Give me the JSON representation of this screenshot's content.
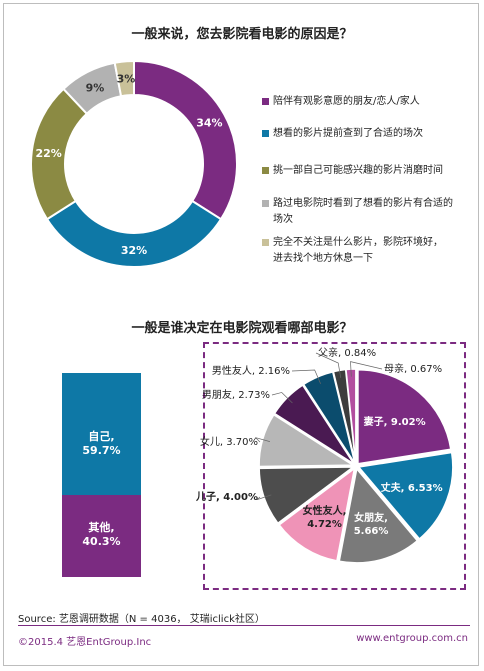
{
  "chart_data": [
    {
      "type": "pie",
      "title": "一般来说，您去影院看电影的原因是？",
      "slices": [
        {
          "label": "陪伴有观影意愿的朋友/恋人/家人",
          "value": 34,
          "value_label": "34%",
          "color": "#7b2b81"
        },
        {
          "label": "想看的影片提前查到了合适的场次",
          "value": 32,
          "value_label": "32%",
          "color": "#0e78a6"
        },
        {
          "label": "挑一部自己可能感兴趣的影片消磨时间",
          "value": 22,
          "value_label": "22%",
          "color": "#8b8a43"
        },
        {
          "label": "路过电影院时看到了想看的影片有合适的场次",
          "value": 9,
          "value_label": "9%",
          "color": "#b2b2b2"
        },
        {
          "label": "完全不关注是什么影片，影院环境好，进去找个地方休息一下",
          "value": 3,
          "value_label": "3%",
          "color": "#c9c199"
        }
      ],
      "legend_lines": [
        [
          "陪伴有观影意愿的朋友/恋人/家人"
        ],
        [
          "想看的影片提前查到了合适的场次"
        ],
        [
          "挑一部自己可能感兴趣的影片消磨时间"
        ],
        [
          "路过电影院时看到了想看的影片有合适的",
          "场次"
        ],
        [
          "完全不关注是什么影片，影院环境好，",
          "进去找个地方休息一下"
        ]
      ]
    },
    {
      "type": "bar",
      "title": "一般是谁决定在电影院观看哪部电影？",
      "stacked": true,
      "segments": [
        {
          "name": "自己",
          "value": 59.7,
          "label": "自己,",
          "value_label": "59.7%",
          "color": "#0e78a6"
        },
        {
          "name": "其他",
          "value": 40.3,
          "label": "其他,",
          "value_label": "40.3%",
          "color": "#7b2b81"
        }
      ]
    },
    {
      "type": "pie",
      "slices": [
        {
          "label": "妻子",
          "value": 9.02,
          "text": "妻子, 9.02%",
          "color": "#7b2b81"
        },
        {
          "label": "丈夫",
          "value": 6.53,
          "text": "丈夫, 6.53%",
          "color": "#0e78a6"
        },
        {
          "label": "女朋友",
          "value": 5.66,
          "text": "女朋友, 5.66%",
          "color": "#7a7a7a"
        },
        {
          "label": "女性友人",
          "value": 4.72,
          "text": "女性友人, 4.72%",
          "color": "#ef93b7"
        },
        {
          "label": "儿子",
          "value": 4.0,
          "text": "儿子, 4.00%",
          "color": "#4d4d4d"
        },
        {
          "label": "女儿",
          "value": 3.7,
          "text": "女儿, 3.70%",
          "color": "#b7b7b7"
        },
        {
          "label": "男朋友",
          "value": 2.73,
          "text": "男朋友, 2.73%",
          "color": "#4a1a52"
        },
        {
          "label": "男性友人",
          "value": 2.16,
          "text": "男性友人, 2.16%",
          "color": "#0b4c6d"
        },
        {
          "label": "父亲",
          "value": 0.84,
          "text": "父亲, 0.84%",
          "color": "#3d3d3d"
        },
        {
          "label": "母亲",
          "value": 0.67,
          "text": "母亲, 0.67%",
          "color": "#b24e9f"
        }
      ]
    }
  ],
  "titles": {
    "q1": "一般来说，您去影院看电影的原因是？",
    "q2": "一般是谁决定在电影院观看哪部电影？"
  },
  "bar_labels": {
    "self_name": "自己,",
    "self_value": "59.7%",
    "other_name": "其他,",
    "other_value": "40.3%"
  },
  "source": "Source: 艺恩调研数据（N = 4036， 艾瑞iclick社区）",
  "footer": {
    "left": "©2015.4 艺恩EntGroup.Inc",
    "right": "www.entgroup.com.cn"
  }
}
